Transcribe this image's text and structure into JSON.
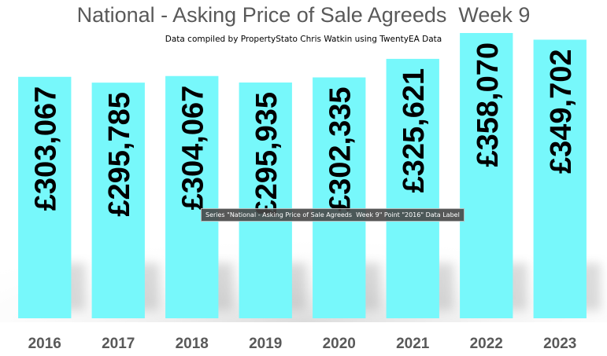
{
  "chart_data": {
    "type": "bar",
    "title": "National - Asking Price of Sale Agreeds  Week 9",
    "subtitle": "Data compiled by PropertyStato Chris Watkin using TwentyEA Data",
    "categories": [
      "2016",
      "2017",
      "2018",
      "2019",
      "2020",
      "2021",
      "2022",
      "2023"
    ],
    "values": [
      303067,
      295785,
      304067,
      295935,
      302335,
      325621,
      358070,
      349702
    ],
    "data_labels": [
      "£303,067",
      "£295,785",
      "£304,067",
      "£295,935",
      "£302,335",
      "£325,621",
      "£358,070",
      "£349,702"
    ],
    "bar_color": "#77f8fb",
    "label_color": "#000000",
    "tick_color": "#595959",
    "grid": false,
    "legend": "none"
  },
  "tooltip": {
    "text": "Series \"National - Asking Price of Sale Agreeds  Week 9\" Point \"2016\" Data Label"
  }
}
